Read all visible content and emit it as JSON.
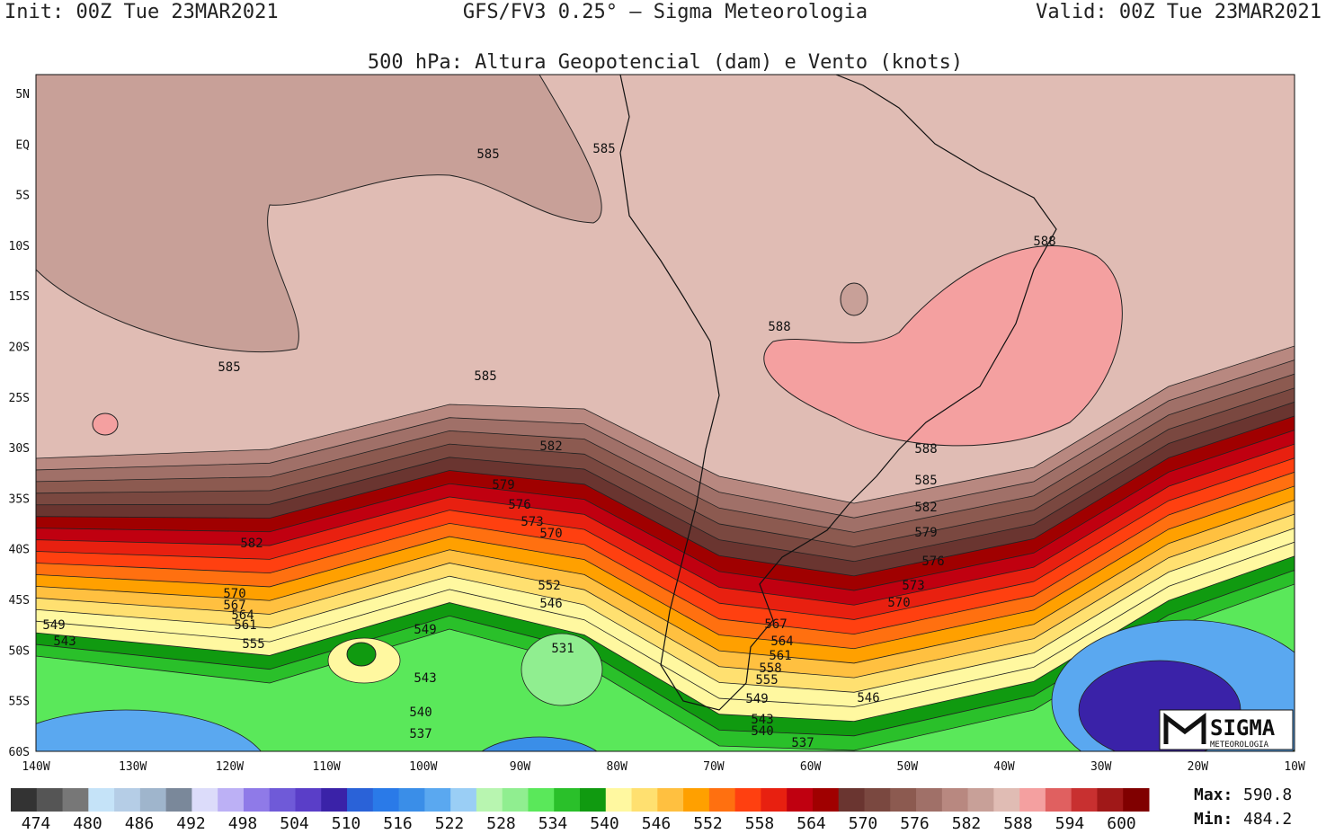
{
  "header": {
    "init": "Init: 00Z Tue 23MAR2021",
    "title": "GFS/FV3 0.25° — Sigma Meteorologia",
    "valid": "Valid: 00Z Tue 23MAR2021",
    "subtitle": "500 hPa: Altura Geopotencial (dam) e Vento (knots)"
  },
  "lat_labels": [
    "5N",
    "EQ",
    "5S",
    "10S",
    "15S",
    "20S",
    "25S",
    "30S",
    "35S",
    "40S",
    "45S",
    "50S",
    "55S",
    "60S"
  ],
  "lon_labels": [
    "140W",
    "130W",
    "120W",
    "110W",
    "100W",
    "90W",
    "80W",
    "70W",
    "60W",
    "50W",
    "40W",
    "30W",
    "20W",
    "10W"
  ],
  "contour_labels": [
    "585",
    "585",
    "588",
    "588",
    "585",
    "585",
    "582",
    "588",
    "579",
    "576",
    "585",
    "582",
    "573",
    "570",
    "579",
    "582",
    "576",
    "552",
    "573",
    "570",
    "567",
    "546",
    "570",
    "564",
    "561",
    "549",
    "567",
    "549",
    "543",
    "555",
    "564",
    "531",
    "561",
    "558",
    "555",
    "543",
    "546",
    "549",
    "540",
    "543",
    "540",
    "537",
    "537"
  ],
  "colorbar": {
    "labels": [
      "474",
      "480",
      "486",
      "492",
      "498",
      "504",
      "510",
      "516",
      "522",
      "528",
      "534",
      "540",
      "546",
      "552",
      "558",
      "564",
      "570",
      "576",
      "582",
      "588",
      "594",
      "600"
    ],
    "colors": [
      "#333333",
      "#555555",
      "#777777",
      "#c5e3f8",
      "#b5cde6",
      "#9fb5cc",
      "#7a889a",
      "#dcdcfa",
      "#bcb0f5",
      "#8f7ae8",
      "#6f5ad8",
      "#5a3ec8",
      "#3a22a8",
      "#2a62d8",
      "#2a7ae8",
      "#3a8ee8",
      "#5aa8f0",
      "#9acef5",
      "#b8f5b0",
      "#90ee90",
      "#5ae85a",
      "#2ac02a",
      "#109a10",
      "#fff8a0",
      "#ffe070",
      "#ffc040",
      "#ffa000",
      "#ff7010",
      "#ff4010",
      "#e82010",
      "#c00010",
      "#a00000",
      "#6a3530",
      "#7a4840",
      "#8c5a50",
      "#a07068",
      "#b88880",
      "#c8a098",
      "#e0bcb4",
      "#f4a0a0",
      "#e06060",
      "#c83030",
      "#a01818",
      "#800000"
    ]
  },
  "stats": {
    "max_label": "Max:",
    "max": "590.8",
    "min_label": "Min:",
    "min": "484.2"
  },
  "logo": {
    "name": "SIGMA",
    "sub": "METEOROLOGIA"
  }
}
